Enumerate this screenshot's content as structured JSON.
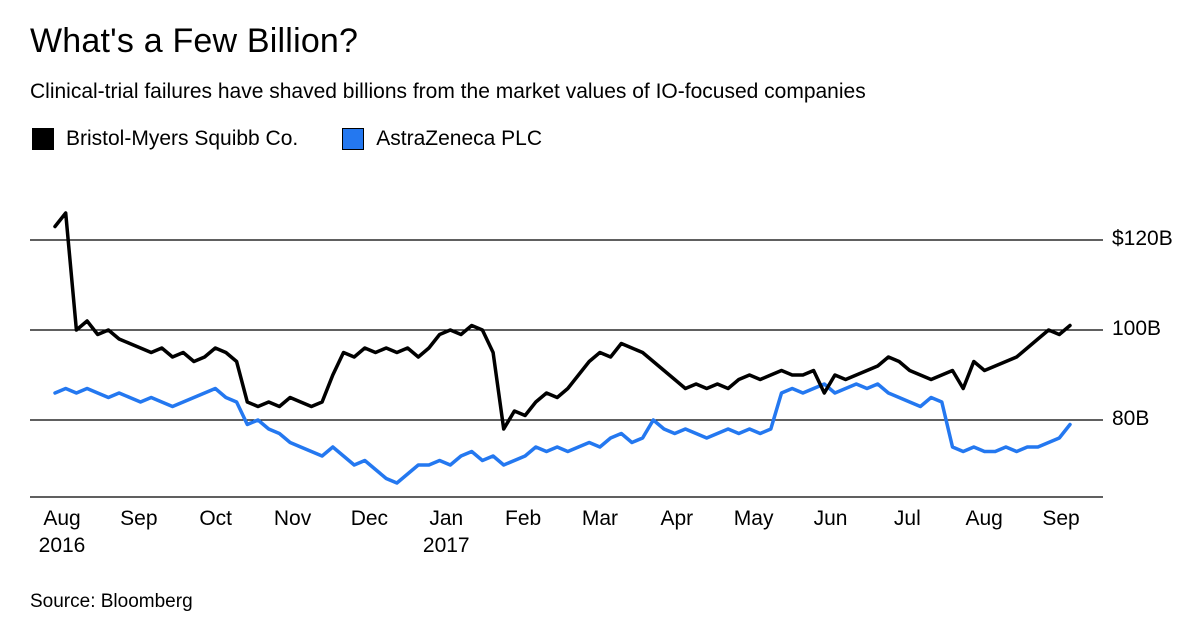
{
  "header": {
    "title": "What's a Few Billion?",
    "subtitle": "Clinical-trial failures have shaved billions from the market values of IO-focused companies"
  },
  "source": "Source: Bloomberg",
  "chart_data": {
    "type": "line",
    "title": "What's a Few Billion?",
    "subtitle": "Clinical-trial failures have shaved billions from the market values of IO-focused companies",
    "unit": "market value, USD billions",
    "grid": "horizontal",
    "legend_position": "top-left",
    "x_axis": {
      "labels": [
        {
          "label": "Aug",
          "year": "2016"
        },
        {
          "label": "Sep"
        },
        {
          "label": "Oct"
        },
        {
          "label": "Nov"
        },
        {
          "label": "Dec"
        },
        {
          "label": "Jan",
          "year": "2017"
        },
        {
          "label": "Feb"
        },
        {
          "label": "Mar"
        },
        {
          "label": "Apr"
        },
        {
          "label": "May"
        },
        {
          "label": "Jun"
        },
        {
          "label": "Jul"
        },
        {
          "label": "Aug"
        },
        {
          "label": "Sep"
        }
      ],
      "points_per_month": 7
    },
    "y_axis": {
      "ticks": [
        {
          "value": 120,
          "label": "$120B"
        },
        {
          "value": 100,
          "label": "100B"
        },
        {
          "value": 80,
          "label": "80B"
        }
      ],
      "range": [
        62,
        128
      ]
    },
    "series": [
      {
        "name": "Bristol-Myers Squibb Co.",
        "color": "#000000",
        "values": [
          123,
          126,
          100,
          102,
          99,
          100,
          98,
          97,
          96,
          95,
          96,
          94,
          95,
          93,
          94,
          96,
          95,
          93,
          84,
          83,
          84,
          83,
          85,
          84,
          83,
          84,
          90,
          95,
          94,
          96,
          95,
          96,
          95,
          96,
          94,
          96,
          99,
          100,
          99,
          101,
          100,
          95,
          78,
          82,
          81,
          84,
          86,
          85,
          87,
          90,
          93,
          95,
          94,
          97,
          96,
          95,
          93,
          91,
          89,
          87,
          88,
          87,
          88,
          87,
          89,
          90,
          89,
          90,
          91,
          90,
          90,
          91,
          86,
          90,
          89,
          90,
          91,
          92,
          94,
          93,
          91,
          90,
          89,
          90,
          91,
          87,
          93,
          91,
          92,
          93,
          94,
          96,
          98,
          100,
          99,
          101
        ]
      },
      {
        "name": "AstraZeneca PLC",
        "color": "#2478F0",
        "values": [
          86,
          87,
          86,
          87,
          86,
          85,
          86,
          85,
          84,
          85,
          84,
          83,
          84,
          85,
          86,
          87,
          85,
          84,
          79,
          80,
          78,
          77,
          75,
          74,
          73,
          72,
          74,
          72,
          70,
          71,
          69,
          67,
          66,
          68,
          70,
          70,
          71,
          70,
          72,
          73,
          71,
          72,
          70,
          71,
          72,
          74,
          73,
          74,
          73,
          74,
          75,
          74,
          76,
          77,
          75,
          76,
          80,
          78,
          77,
          78,
          77,
          76,
          77,
          78,
          77,
          78,
          77,
          78,
          86,
          87,
          86,
          87,
          88,
          86,
          87,
          88,
          87,
          88,
          86,
          85,
          84,
          83,
          85,
          84,
          74,
          73,
          74,
          73,
          73,
          74,
          73,
          74,
          74,
          75,
          76,
          79
        ]
      }
    ]
  }
}
